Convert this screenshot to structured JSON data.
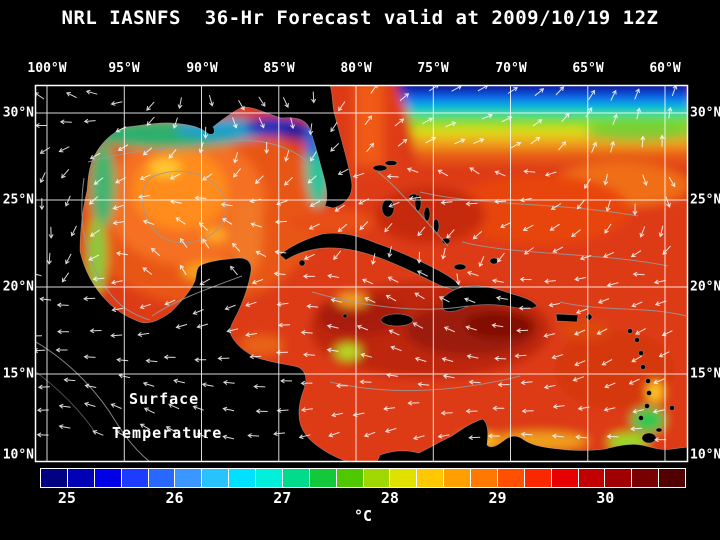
{
  "title": "NRL IASNFS  36-Hr Forecast valid at 2009/10/19 12Z",
  "map": {
    "lon_labels": [
      "100°W",
      "95°W",
      "90°W",
      "85°W",
      "80°W",
      "75°W",
      "70°W",
      "65°W",
      "60°W"
    ],
    "lat_labels_left": [
      "30°N",
      "25°N",
      "20°N",
      "15°N",
      "10°N"
    ],
    "lat_labels_right": [
      "30°N",
      "25°N",
      "20°N",
      "15°N",
      "10°N"
    ],
    "overlay": {
      "line1": "Surface",
      "line2": "Temperature"
    }
  },
  "colorbar": {
    "unit": "°C",
    "ticks": [
      "25",
      "26",
      "27",
      "28",
      "29",
      "30"
    ],
    "segments": [
      "#000082",
      "#0000B4",
      "#0000E6",
      "#1E3CFF",
      "#2868FF",
      "#3C96FF",
      "#28C3FF",
      "#00E1FF",
      "#00F0DC",
      "#00DC8C",
      "#14C83C",
      "#50C800",
      "#A0D700",
      "#E1E100",
      "#FFC800",
      "#FFA000",
      "#FF7800",
      "#FF5000",
      "#FA2800",
      "#E60000",
      "#C30000",
      "#A00000",
      "#780000",
      "#500000"
    ]
  }
}
